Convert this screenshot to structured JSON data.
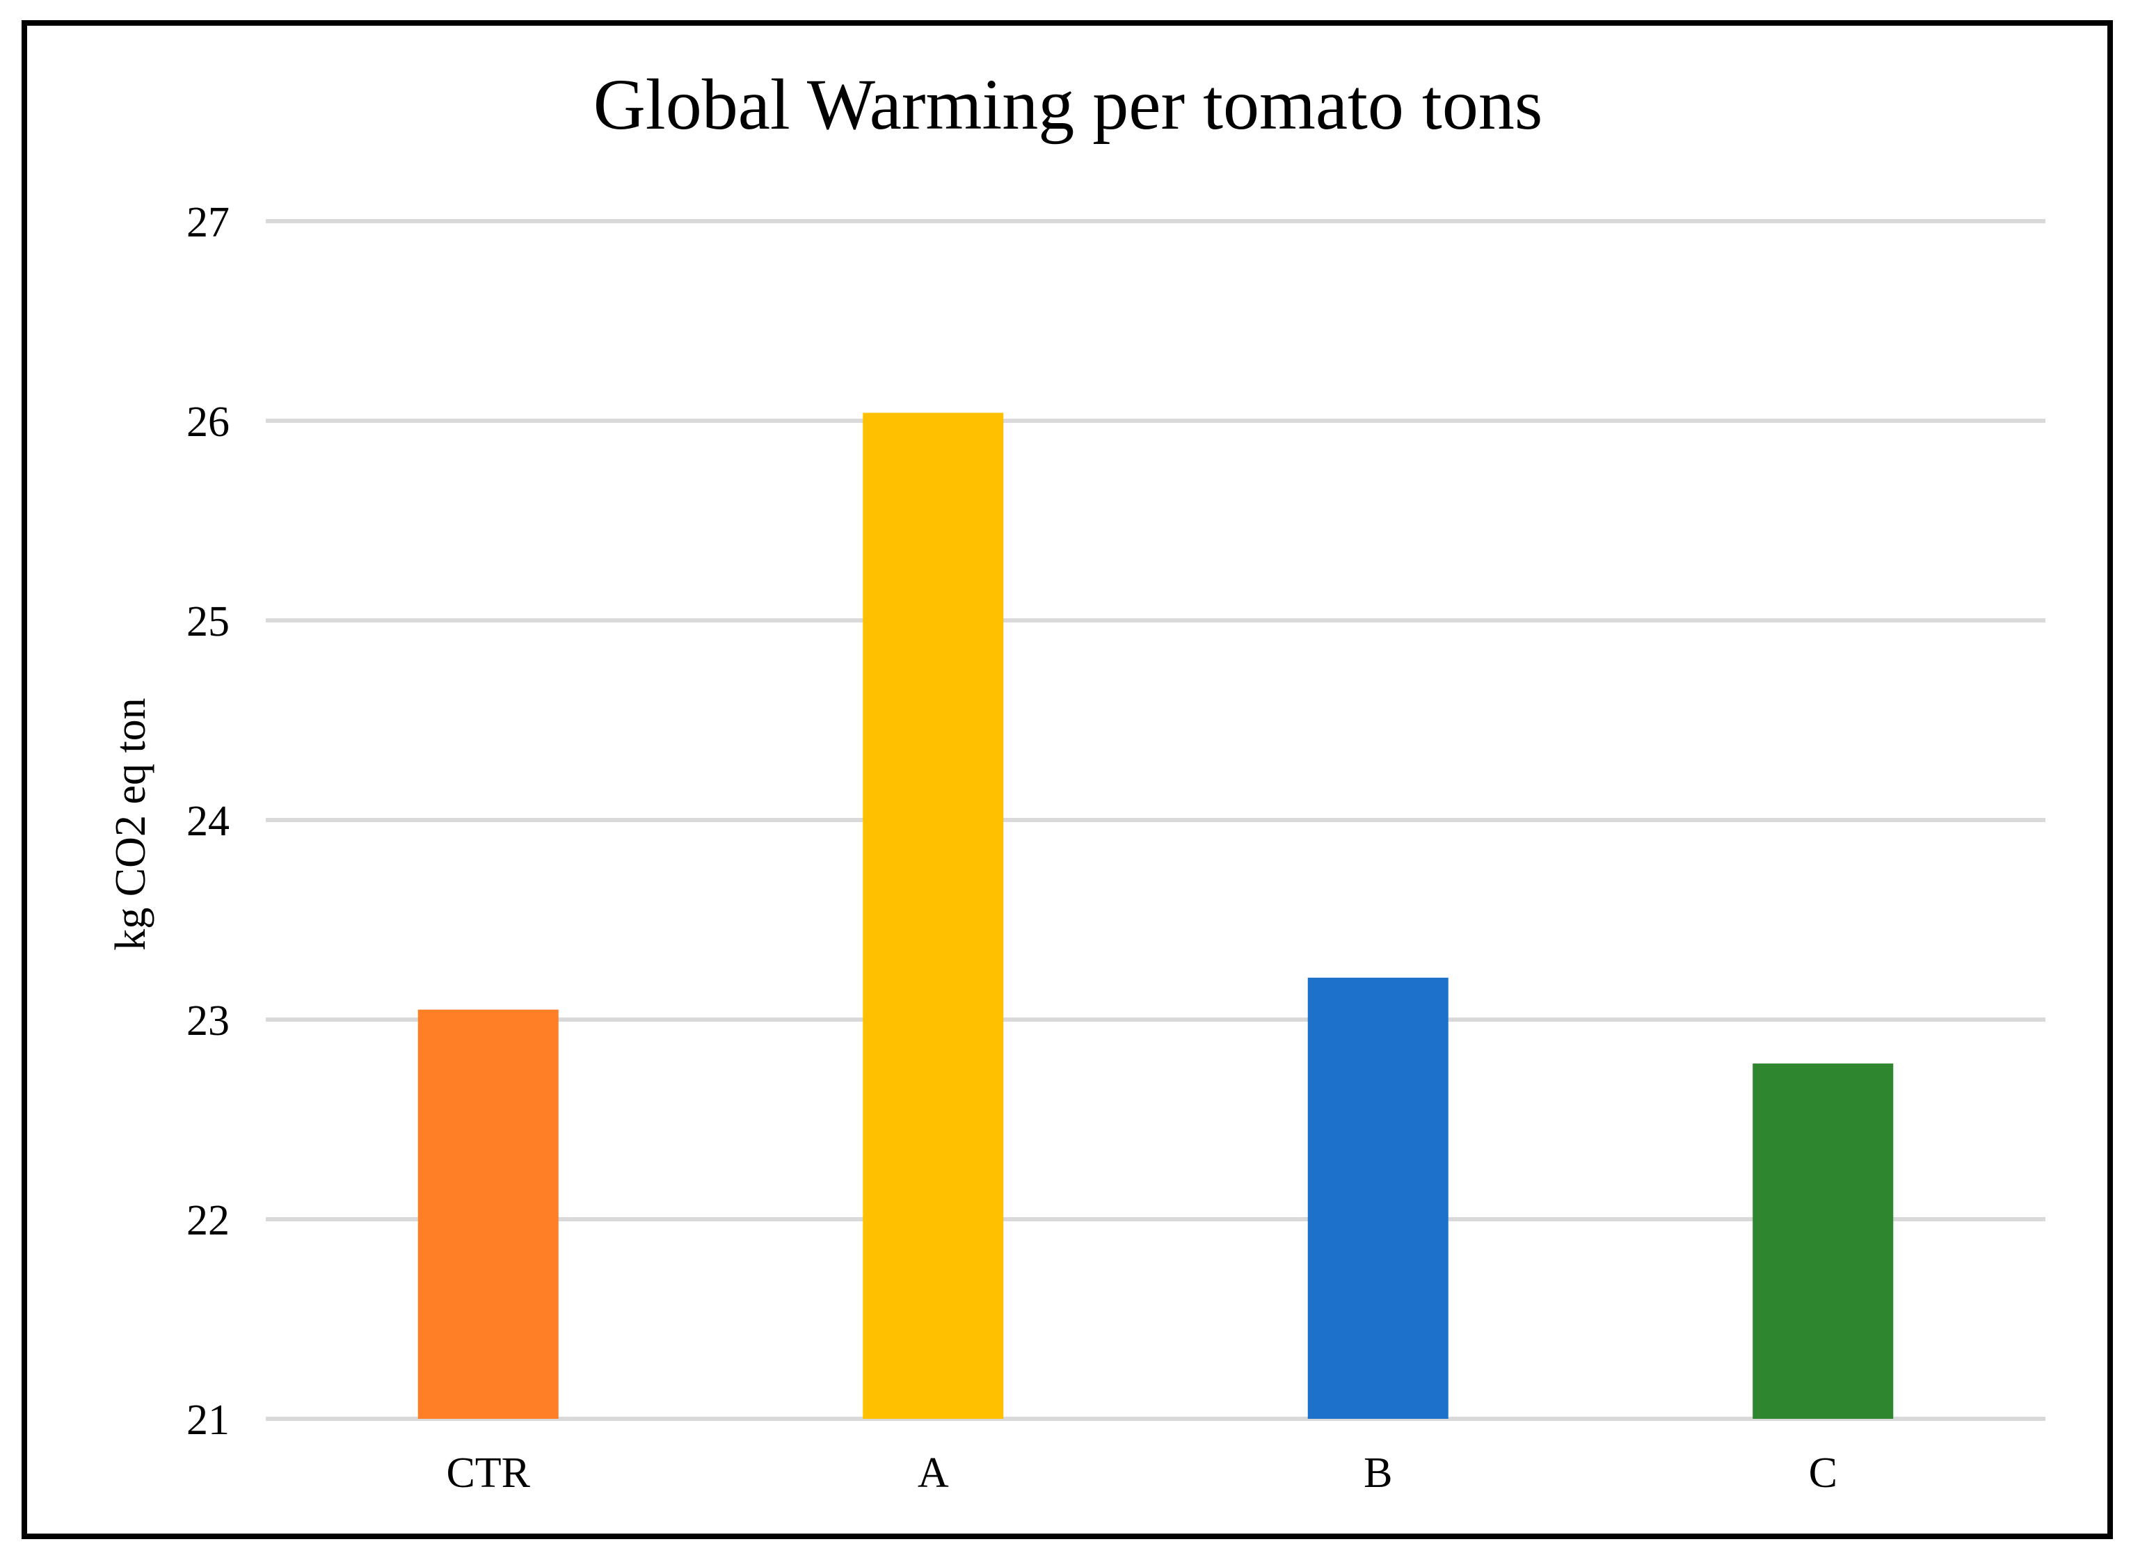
{
  "chart_data": {
    "type": "bar",
    "title": "Global Warming per tomato tons",
    "xlabel": "",
    "ylabel": "kg CO2 eq ton",
    "categories": [
      "CTR",
      "A",
      "B",
      "C"
    ],
    "values": [
      23.05,
      26.04,
      23.21,
      22.78
    ],
    "colors": [
      "#ff7f27",
      "#ffc000",
      "#1b72c8",
      "#2e862e"
    ],
    "ylim": [
      21,
      27
    ],
    "yticks": [
      "21",
      "22",
      "23",
      "24",
      "25",
      "26",
      "27"
    ],
    "grid": true,
    "legend": "none"
  },
  "style": {
    "frame_color": "#000000",
    "grid_color": "#d9d9d9",
    "background": "#ffffff"
  }
}
